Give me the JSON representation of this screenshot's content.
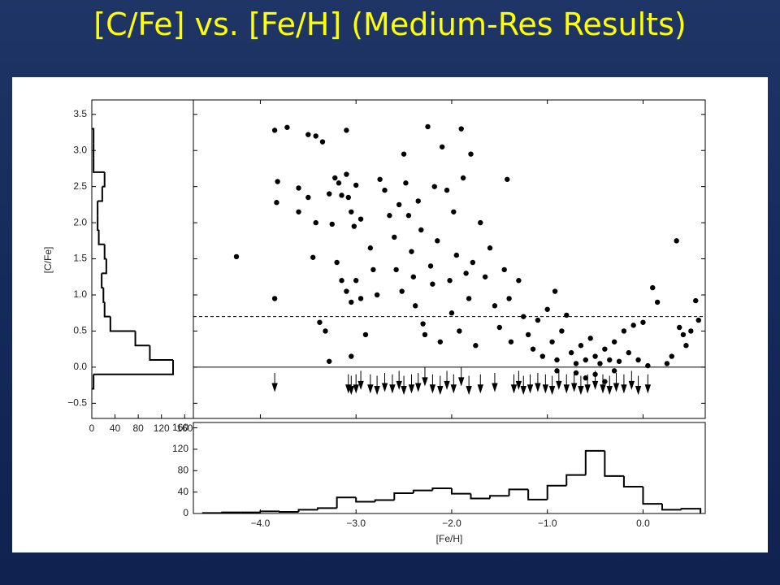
{
  "title": "[C/Fe] vs. [Fe/H] (Medium-Res Results)",
  "chart_data": [
    {
      "type": "scatter",
      "ylabel": "[C/Fe]",
      "ylim": [
        -0.71,
        3.7
      ],
      "yticks": [
        {
          "value": -0.5,
          "label": "−0.5"
        },
        {
          "value": 0,
          "label": "0.0"
        },
        0.5,
        {
          "value": 1,
          "label": "1.0"
        },
        1.5,
        {
          "value": 2,
          "label": "2.0"
        },
        2.5,
        {
          "value": 3,
          "label": "3.0"
        },
        3.5
      ],
      "reference_lines": [
        {
          "value": 0,
          "dashed": false
        },
        {
          "value": 0.7,
          "dashed": true
        }
      ],
      "series": [
        {
          "marker": "dot",
          "color": "#000000",
          "x": [
            -4.25,
            -3.85,
            -3.85,
            -3.72,
            -3.82,
            -3.83,
            -3.6,
            -3.6,
            -3.5,
            -3.42,
            -3.35,
            -3.5,
            -3.45,
            -3.42,
            -3.38,
            -3.32,
            -3.28,
            -3.25,
            -3.22,
            -3.18,
            -3.15,
            -3.1,
            -3.1,
            -3.08,
            -3.05,
            -3.02,
            -3.0,
            -2.95,
            -3.2,
            -3.15,
            -3.1,
            -3.05,
            -3.0,
            -2.95,
            -3.28,
            -3.05,
            -2.9,
            -2.85,
            -2.82,
            -2.78,
            -2.75,
            -2.7,
            -2.65,
            -2.6,
            -2.58,
            -2.55,
            -2.52,
            -2.5,
            -2.48,
            -2.45,
            -2.42,
            -2.4,
            -2.38,
            -2.35,
            -2.32,
            -2.3,
            -2.28,
            -2.25,
            -2.22,
            -2.2,
            -2.18,
            -2.15,
            -2.12,
            -2.1,
            -2.05,
            -2.02,
            -2.0,
            -1.98,
            -1.95,
            -1.92,
            -1.9,
            -1.88,
            -1.85,
            -1.82,
            -1.8,
            -1.78,
            -1.75,
            -1.7,
            -1.65,
            -1.6,
            -1.55,
            -1.5,
            -1.45,
            -1.42,
            -1.4,
            -1.38,
            -1.3,
            -1.25,
            -1.2,
            -1.15,
            -1.1,
            -1.05,
            -1.0,
            -0.95,
            -0.92,
            -0.9,
            -0.85,
            -0.8,
            -0.75,
            -0.7,
            -0.65,
            -0.6,
            -0.55,
            -0.5,
            -0.45,
            -0.4,
            -0.35,
            -0.3,
            -0.25,
            -0.2,
            -0.15,
            -0.1,
            -0.05,
            0.0,
            0.05,
            0.1,
            0.15,
            0.25,
            0.3,
            0.35,
            0.38,
            0.42,
            0.45,
            0.5,
            0.55,
            0.58,
            -0.9,
            -0.7,
            -0.5,
            -0.3,
            -0.6,
            -0.4
          ],
          "values": [
            1.53,
            0.95,
            3.28,
            3.32,
            2.57,
            2.28,
            2.48,
            2.15,
            3.22,
            3.2,
            3.12,
            2.35,
            1.52,
            2.0,
            0.62,
            0.5,
            2.4,
            1.98,
            2.62,
            2.55,
            2.38,
            3.28,
            2.67,
            2.35,
            2.15,
            1.95,
            2.52,
            2.05,
            1.45,
            1.2,
            1.05,
            0.9,
            1.2,
            0.95,
            0.08,
            0.15,
            0.45,
            1.65,
            1.35,
            1.0,
            2.6,
            2.45,
            2.1,
            1.8,
            1.35,
            2.25,
            1.05,
            2.95,
            2.55,
            2.1,
            1.6,
            1.25,
            0.85,
            2.3,
            1.9,
            0.6,
            0.45,
            3.33,
            1.4,
            1.15,
            2.5,
            1.75,
            0.35,
            3.05,
            2.45,
            1.2,
            0.75,
            2.15,
            1.55,
            0.5,
            3.3,
            2.62,
            1.3,
            0.95,
            2.95,
            1.45,
            0.3,
            2.0,
            1.25,
            1.65,
            0.85,
            0.55,
            1.35,
            2.6,
            0.95,
            0.35,
            1.2,
            0.7,
            0.45,
            0.25,
            0.65,
            0.15,
            0.8,
            0.35,
            1.05,
            0.1,
            0.5,
            0.72,
            0.2,
            0.05,
            0.3,
            0.1,
            0.4,
            0.15,
            0.05,
            0.25,
            0.1,
            0.35,
            0.08,
            0.5,
            0.2,
            0.58,
            0.1,
            0.62,
            0.02,
            1.1,
            0.9,
            0.05,
            0.15,
            1.75,
            0.55,
            0.45,
            0.3,
            0.5,
            0.92,
            0.65,
            -0.05,
            -0.08,
            -0.1,
            -0.05,
            -0.15,
            -0.2
          ]
        },
        {
          "marker": "arrow",
          "color": "#000000",
          "x": [
            -3.85,
            -3.08,
            -3.05,
            -3.0,
            -2.95,
            -2.85,
            -2.78,
            -2.7,
            -2.62,
            -2.55,
            -2.5,
            -2.42,
            -2.35,
            -2.28,
            -2.2,
            -2.12,
            -2.05,
            -1.98,
            -1.9,
            -1.82,
            -1.7,
            -1.55,
            -1.35,
            -1.3,
            -1.25,
            -1.18,
            -1.1,
            -1.02,
            -0.95,
            -0.88,
            -0.8,
            -0.72,
            -0.65,
            -0.58,
            -0.5,
            -0.42,
            -0.35,
            -0.28,
            -0.2,
            -0.12,
            -0.05,
            0.05
          ],
          "values": [
            -0.08,
            -0.1,
            -0.12,
            -0.1,
            -0.05,
            -0.1,
            -0.12,
            -0.08,
            -0.1,
            -0.05,
            -0.12,
            -0.1,
            -0.08,
            0.0,
            -0.1,
            -0.12,
            -0.05,
            -0.1,
            0.0,
            -0.12,
            -0.1,
            -0.08,
            -0.1,
            -0.05,
            -0.12,
            -0.1,
            -0.08,
            -0.1,
            -0.12,
            -0.05,
            -0.1,
            -0.08,
            -0.12,
            -0.1,
            -0.05,
            -0.1,
            -0.12,
            -0.08,
            -0.1,
            -0.05,
            -0.12,
            -0.1
          ]
        }
      ]
    },
    {
      "type": "histogram",
      "orientation": "horizontal",
      "color": "#000000",
      "xlim": [
        0,
        175
      ],
      "xticks": [
        0,
        40,
        80,
        120,
        160
      ],
      "bins": [
        -0.3,
        -0.1,
        0.1,
        0.3,
        0.5,
        0.7,
        0.9,
        1.1,
        1.3,
        1.5,
        1.7,
        1.9,
        2.1,
        2.3,
        2.5,
        2.7,
        2.9,
        3.1,
        3.3
      ],
      "values": [
        3,
        140,
        100,
        75,
        32,
        22,
        20,
        17,
        25,
        22,
        12,
        10,
        10,
        18,
        22,
        3,
        3,
        3
      ]
    },
    {
      "type": "histogram",
      "orientation": "vertical",
      "color": "#000000",
      "xlabel": "[Fe/H]",
      "xlim": [
        -4.7,
        0.65
      ],
      "xticks": [
        {
          "value": -4,
          "label": "−4.0"
        },
        {
          "value": -3,
          "label": "−3.0"
        },
        {
          "value": -2,
          "label": "−2.0"
        },
        {
          "value": -1,
          "label": "−1.0"
        },
        {
          "value": 0,
          "label": "0.0"
        }
      ],
      "ylim": [
        0,
        170
      ],
      "yticks": [
        0,
        40,
        80,
        120,
        160
      ],
      "bins": [
        -4.6,
        -4.4,
        -4.2,
        -4.0,
        -3.8,
        -3.6,
        -3.4,
        -3.2,
        -3.0,
        -2.8,
        -2.6,
        -2.4,
        -2.2,
        -2.0,
        -1.8,
        -1.6,
        -1.4,
        -1.2,
        -1.0,
        -0.8,
        -0.6,
        -0.4,
        -0.2,
        0.0,
        0.2,
        0.4,
        0.6
      ],
      "values": [
        1,
        2,
        2,
        4,
        3,
        7,
        10,
        30,
        22,
        25,
        38,
        43,
        47,
        37,
        28,
        33,
        45,
        26,
        52,
        72,
        117,
        70,
        50,
        18,
        7,
        9
      ]
    }
  ]
}
